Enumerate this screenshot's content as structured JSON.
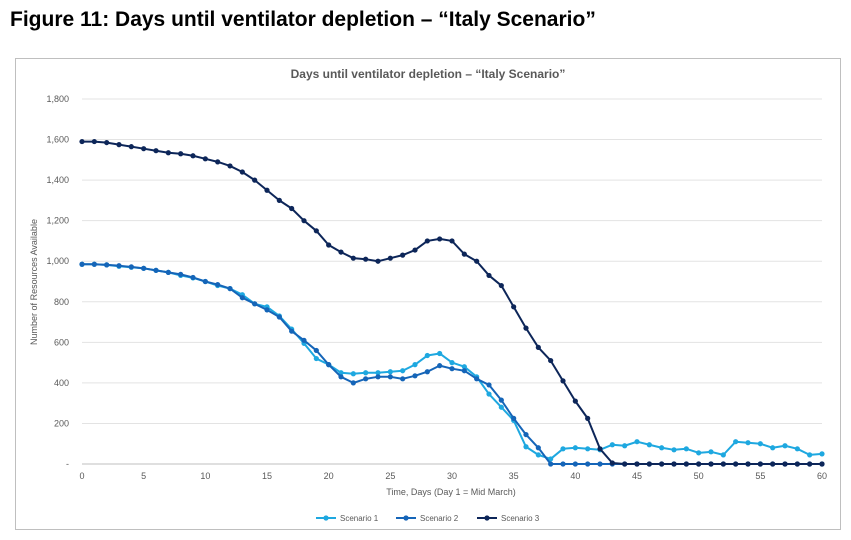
{
  "figure_title": "Figure 11: Days until ventilator depletion – “Italy Scenario”",
  "chart_data": {
    "type": "line",
    "title": "Days until ventilator depletion – “Italy Scenario”",
    "xlabel": "Time, Days (Day 1 = Mid March)",
    "ylabel": "Number of Resources Available",
    "xlim": [
      0,
      60
    ],
    "ylim": [
      0,
      1800
    ],
    "x_ticks": [
      "0",
      "5",
      "10",
      "15",
      "20",
      "25",
      "30",
      "35",
      "40",
      "45",
      "50",
      "55",
      "60"
    ],
    "y_ticks": [
      "-",
      "200",
      "400",
      "600",
      "800",
      "1,000",
      "1,200",
      "1,400",
      "1,600",
      "1,800"
    ],
    "grid": true,
    "legend_position": "bottom",
    "x": [
      0,
      1,
      2,
      3,
      4,
      5,
      6,
      7,
      8,
      9,
      10,
      11,
      12,
      13,
      14,
      15,
      16,
      17,
      18,
      19,
      20,
      21,
      22,
      23,
      24,
      25,
      26,
      27,
      28,
      29,
      30,
      31,
      32,
      33,
      34,
      35,
      36,
      37,
      38,
      39,
      40,
      41,
      42,
      43,
      44,
      45,
      46,
      47,
      48,
      49,
      50,
      51,
      52,
      53,
      54,
      55,
      56,
      57,
      58,
      59,
      60
    ],
    "series": [
      {
        "name": "Scenario 1",
        "color": "#1ea8e0",
        "values": [
          985,
          985,
          982,
          975,
          970,
          965,
          955,
          945,
          930,
          918,
          900,
          880,
          865,
          835,
          790,
          775,
          730,
          665,
          595,
          520,
          490,
          450,
          445,
          450,
          450,
          455,
          460,
          490,
          535,
          545,
          500,
          480,
          430,
          345,
          280,
          215,
          85,
          45,
          25,
          75,
          80,
          75,
          70,
          95,
          90,
          110,
          95,
          80,
          70,
          75,
          55,
          60,
          45,
          110,
          105,
          100,
          80,
          90,
          75,
          45,
          50
        ]
      },
      {
        "name": "Scenario 2",
        "color": "#1565b8",
        "values": [
          985,
          985,
          982,
          978,
          972,
          965,
          955,
          945,
          935,
          920,
          900,
          885,
          865,
          820,
          790,
          760,
          725,
          655,
          610,
          560,
          490,
          430,
          400,
          420,
          430,
          430,
          420,
          435,
          455,
          485,
          470,
          460,
          420,
          390,
          315,
          225,
          145,
          80,
          0,
          0,
          0,
          0,
          0,
          0,
          0,
          0,
          0,
          0,
          0,
          0,
          0,
          0,
          0,
          0,
          0,
          0,
          0,
          0,
          0,
          0,
          0
        ]
      },
      {
        "name": "Scenario 3",
        "color": "#0d2659",
        "values": [
          1590,
          1590,
          1585,
          1575,
          1565,
          1555,
          1545,
          1535,
          1530,
          1520,
          1505,
          1490,
          1470,
          1440,
          1400,
          1350,
          1300,
          1260,
          1200,
          1150,
          1080,
          1045,
          1015,
          1010,
          1000,
          1015,
          1030,
          1055,
          1100,
          1110,
          1100,
          1035,
          1000,
          930,
          880,
          775,
          670,
          575,
          510,
          410,
          310,
          225,
          75,
          5,
          0,
          0,
          0,
          0,
          0,
          0,
          0,
          0,
          0,
          0,
          0,
          0,
          0,
          0,
          0,
          0,
          0
        ]
      }
    ]
  }
}
